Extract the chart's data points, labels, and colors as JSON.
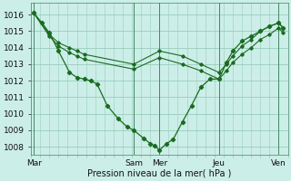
{
  "background_color": "#cceee8",
  "grid_color": "#99ccbb",
  "line_color": "#1a6b20",
  "ylabel": "Pression niveau de la mer( hPa )",
  "ylim": [
    1007.5,
    1016.7
  ],
  "yticks": [
    1008,
    1009,
    1010,
    1011,
    1012,
    1013,
    1014,
    1015,
    1016
  ],
  "xlim": [
    0,
    28
  ],
  "day_labels": [
    "Mar",
    "Sam",
    "Mer",
    "Jeu",
    "Ven"
  ],
  "day_positions": [
    0.3,
    11.2,
    14.0,
    20.5,
    27.0
  ],
  "vline_positions": [
    0.3,
    11.2,
    14.0,
    20.5,
    27.0
  ],
  "line_main_x": [
    0.3,
    1.2,
    2.0,
    3.0,
    4.2,
    5.0,
    5.8,
    6.5,
    7.2,
    8.3,
    9.5,
    10.5,
    11.2,
    12.3,
    13.0,
    13.5,
    14.0,
    14.8,
    15.5,
    16.5,
    17.5,
    18.5,
    19.5,
    20.5,
    21.3,
    22.0,
    23.0,
    24.0,
    25.0,
    26.0,
    27.0,
    27.5
  ],
  "line_main_y": [
    1016.1,
    1015.5,
    1014.9,
    1013.8,
    1012.5,
    1012.2,
    1012.1,
    1012.0,
    1011.8,
    1010.5,
    1009.7,
    1009.2,
    1009.0,
    1008.5,
    1008.2,
    1008.05,
    1007.8,
    1008.2,
    1008.45,
    1009.5,
    1010.5,
    1011.6,
    1012.1,
    1012.1,
    1013.1,
    1013.8,
    1014.4,
    1014.7,
    1015.0,
    1015.3,
    1015.5,
    1015.2
  ],
  "line_upper_x": [
    0.3,
    2.0,
    3.0,
    4.2,
    5.0,
    5.8,
    11.2,
    14.0,
    16.5,
    18.5,
    20.5,
    21.3,
    22.0,
    23.0,
    24.0,
    25.0,
    26.0,
    27.0,
    27.5
  ],
  "line_upper_y": [
    1016.1,
    1014.8,
    1014.3,
    1014.0,
    1013.8,
    1013.6,
    1013.0,
    1013.8,
    1013.5,
    1013.0,
    1012.5,
    1013.0,
    1013.5,
    1014.1,
    1014.5,
    1015.0,
    1015.3,
    1015.5,
    1015.2
  ],
  "line_lower_x": [
    0.3,
    2.0,
    3.0,
    4.2,
    5.0,
    5.8,
    11.2,
    14.0,
    16.5,
    18.5,
    20.5,
    21.3,
    22.0,
    23.0,
    24.0,
    25.0,
    26.0,
    27.0,
    27.5
  ],
  "line_lower_y": [
    1016.1,
    1014.7,
    1014.1,
    1013.7,
    1013.5,
    1013.3,
    1012.7,
    1013.4,
    1013.0,
    1012.6,
    1012.1,
    1012.6,
    1013.1,
    1013.6,
    1014.0,
    1014.5,
    1014.8,
    1015.2,
    1014.9
  ]
}
